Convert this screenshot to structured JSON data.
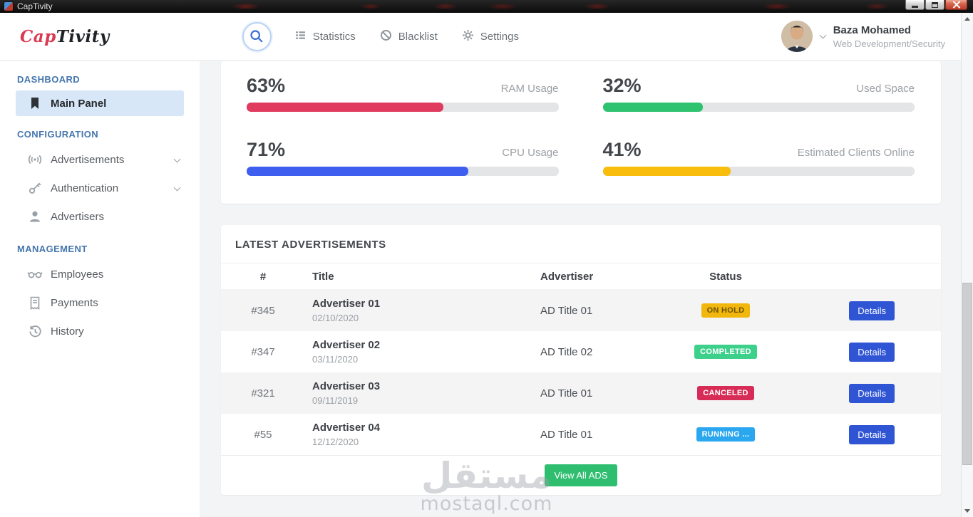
{
  "window": {
    "title": "CapTivity"
  },
  "navbar": {
    "logo_part1": "Cap",
    "logo_part2": "Tivity",
    "items": [
      {
        "label": "Statistics"
      },
      {
        "label": "Blacklist"
      },
      {
        "label": "Settings"
      }
    ],
    "user": {
      "name": "Baza Mohamed",
      "role": "Web Development/Security"
    }
  },
  "sidebar": {
    "sections": [
      {
        "heading": "DASHBOARD",
        "items": [
          {
            "label": "Main Panel"
          }
        ]
      },
      {
        "heading": "CONFIGURATION",
        "items": [
          {
            "label": "Advertisements"
          },
          {
            "label": "Authentication"
          },
          {
            "label": "Advertisers"
          }
        ]
      },
      {
        "heading": "MANAGEMENT",
        "items": [
          {
            "label": "Employees"
          },
          {
            "label": "Payments"
          },
          {
            "label": "History"
          }
        ]
      }
    ]
  },
  "stats": [
    {
      "percent": "63%",
      "value": 63,
      "label": "RAM Usage",
      "color": "#e03b5f"
    },
    {
      "percent": "32%",
      "value": 32,
      "label": "Used Space",
      "color": "#2fc26f"
    },
    {
      "percent": "71%",
      "value": 71,
      "label": "CPU Usage",
      "color": "#3e5ef0"
    },
    {
      "percent": "41%",
      "value": 41,
      "label": "Estimated Clients Online",
      "color": "#f9bd0d"
    }
  ],
  "ads": {
    "title": "LATEST ADVERTISEMENTS",
    "columns": [
      "#",
      "Title",
      "Advertiser",
      "Status"
    ],
    "details_label": "Details",
    "view_all_label": "View All ADS",
    "rows": [
      {
        "id": "#345",
        "title": "Advertiser 01",
        "date": "02/10/2020",
        "advertiser": "AD Title 01",
        "status": "ON HOLD",
        "status_bg": "#f2b70c",
        "status_text": "#6b5200"
      },
      {
        "id": "#347",
        "title": "Advertiser 02",
        "date": "03/11/2020",
        "advertiser": "AD Title 02",
        "status": "COMPLETED",
        "status_bg": "#3dd08b",
        "status_text": "#ffffff"
      },
      {
        "id": "#321",
        "title": "Advertiser 03",
        "date": "09/11/2019",
        "advertiser": "AD Title 01",
        "status": "CANCELED",
        "status_bg": "#d72c55",
        "status_text": "#ffffff"
      },
      {
        "id": "#55",
        "title": "Advertiser 04",
        "date": "12/12/2020",
        "advertiser": "AD Title 01",
        "status": "RUNNING ...",
        "status_bg": "#2ba7f0",
        "status_text": "#ffffff"
      }
    ]
  },
  "watermark": {
    "arabic": "مستقل",
    "latin": "mostaql.com"
  }
}
